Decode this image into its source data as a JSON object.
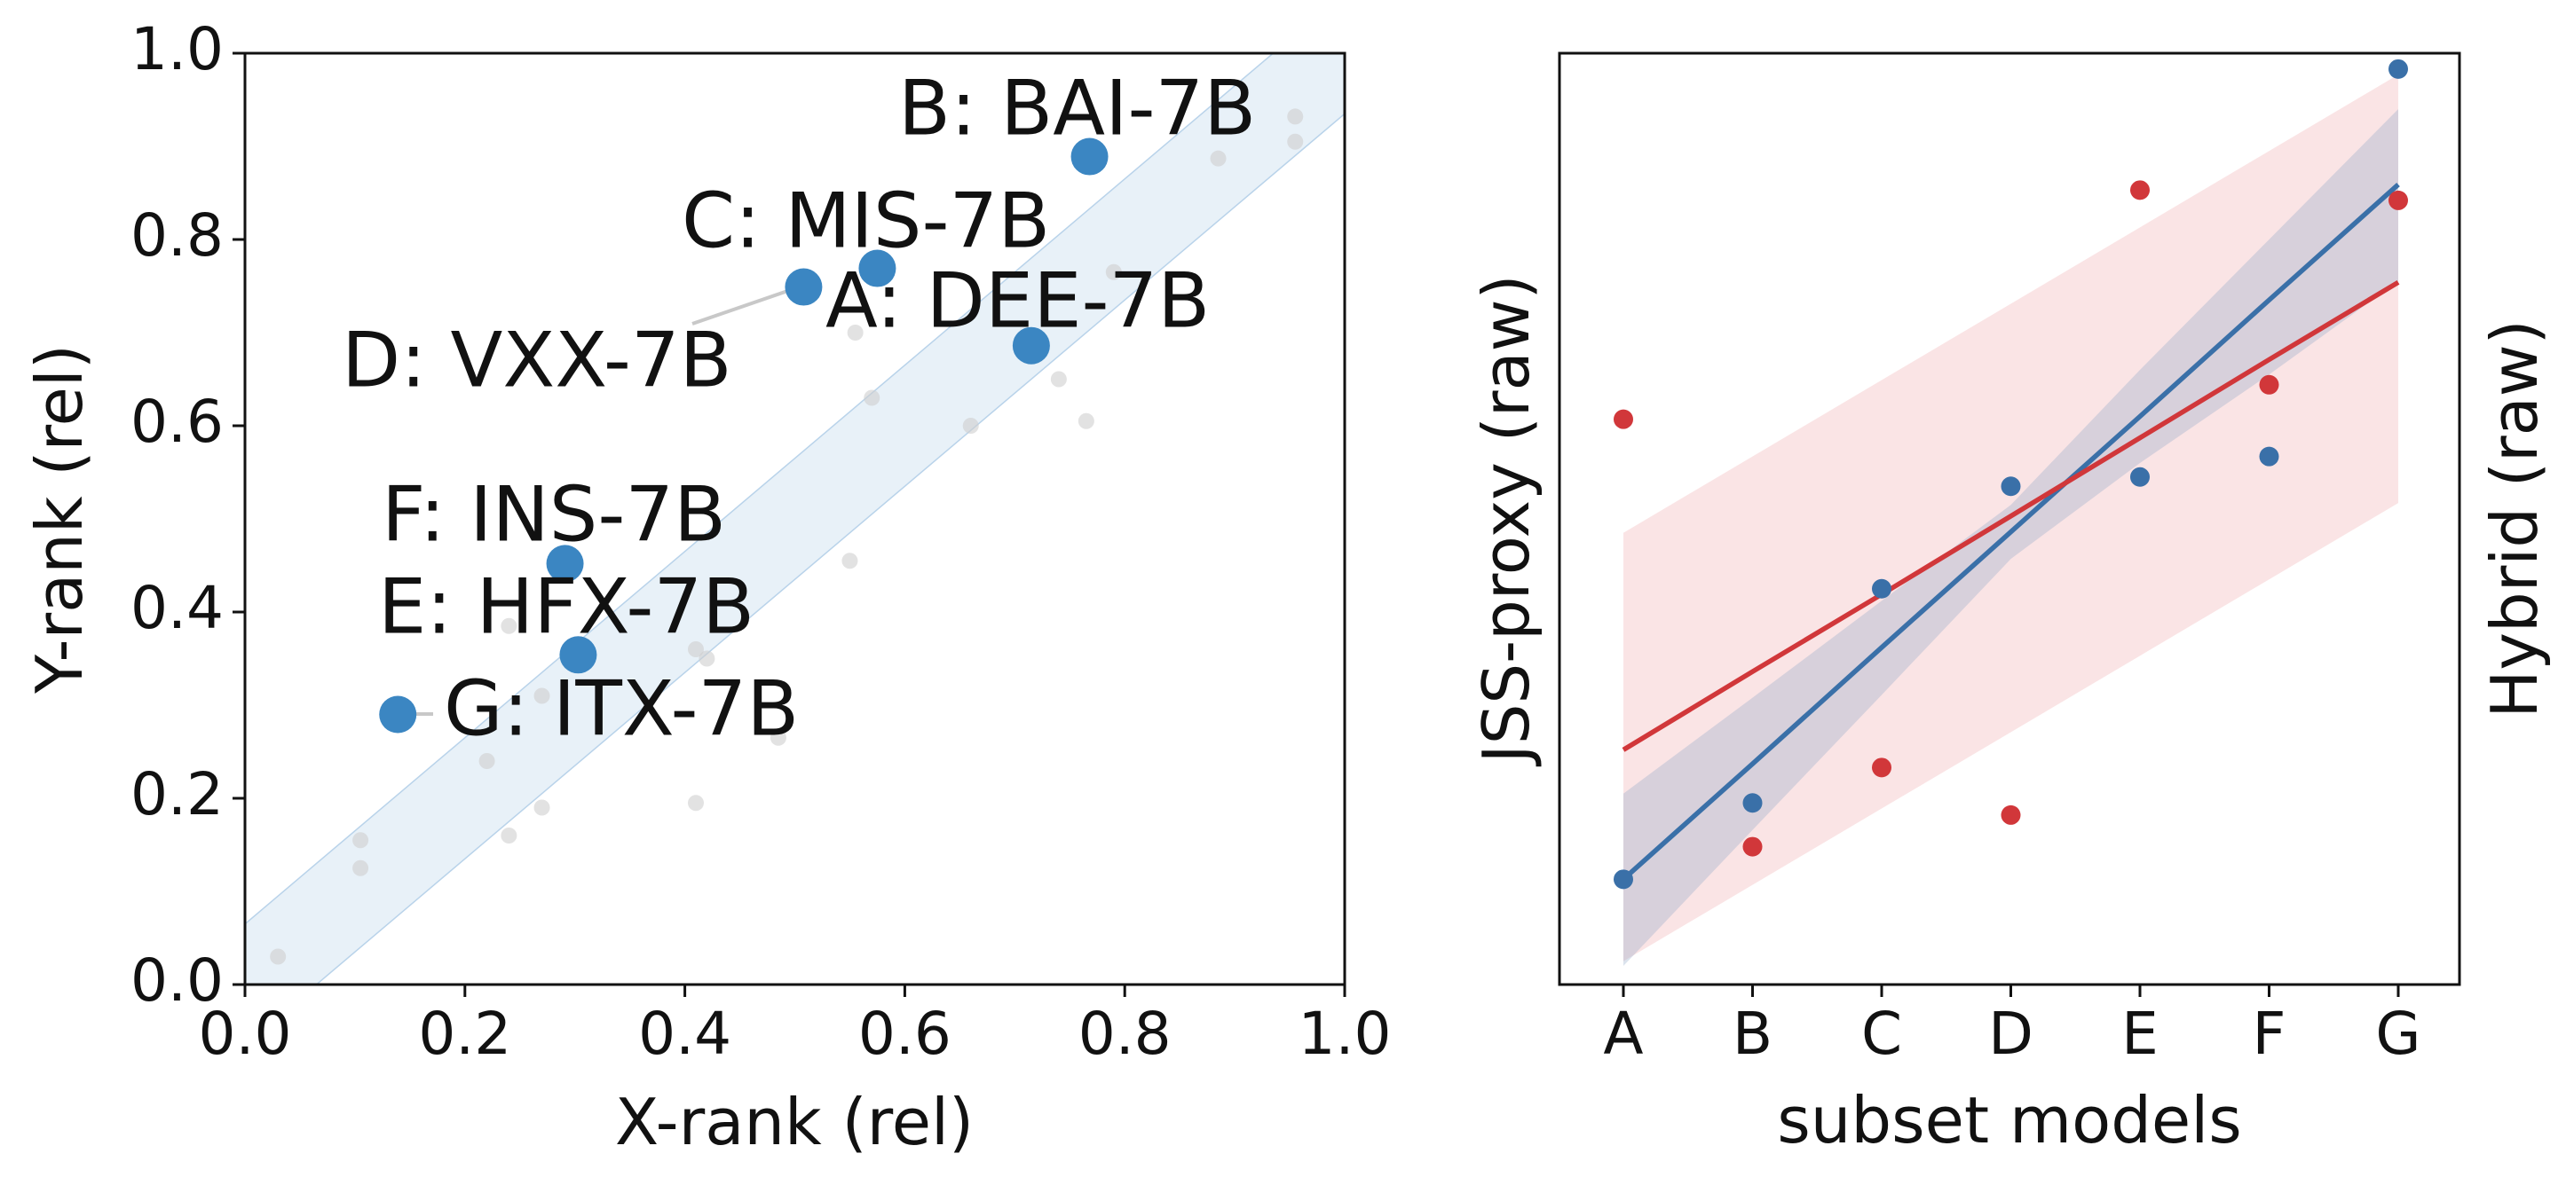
{
  "chart_data": [
    {
      "type": "scatter",
      "xlabel": "X-rank (rel)",
      "ylabel": "Y-rank (rel)",
      "xlim": [
        0.0,
        1.0
      ],
      "ylim": [
        0.0,
        1.0
      ],
      "xticks": [
        "0.0",
        "0.2",
        "0.4",
        "0.6",
        "0.8",
        "1.0"
      ],
      "yticks": [
        "0.0",
        "0.2",
        "0.4",
        "0.6",
        "0.8",
        "1.0"
      ],
      "diagonal_band_halfwidth": 0.065,
      "highlighted": [
        {
          "label": "A: DEE-7B",
          "x": 0.715,
          "y": 0.686
        },
        {
          "label": "B: BAI-7B",
          "x": 0.768,
          "y": 0.889
        },
        {
          "label": "C: MIS-7B",
          "x": 0.575,
          "y": 0.769
        },
        {
          "label": "D: VXX-7B",
          "x": 0.508,
          "y": 0.749
        },
        {
          "label": "E: HFX-7B",
          "x": 0.303,
          "y": 0.354
        },
        {
          "label": "F: INS-7B",
          "x": 0.291,
          "y": 0.452
        },
        {
          "label": "G: ITX-7B",
          "x": 0.139,
          "y": 0.29
        }
      ],
      "background_points": [
        {
          "x": 0.03,
          "y": 0.03
        },
        {
          "x": 0.105,
          "y": 0.155
        },
        {
          "x": 0.105,
          "y": 0.125
        },
        {
          "x": 0.22,
          "y": 0.24
        },
        {
          "x": 0.24,
          "y": 0.16
        },
        {
          "x": 0.27,
          "y": 0.19
        },
        {
          "x": 0.27,
          "y": 0.31
        },
        {
          "x": 0.24,
          "y": 0.385
        },
        {
          "x": 0.41,
          "y": 0.195
        },
        {
          "x": 0.41,
          "y": 0.36
        },
        {
          "x": 0.42,
          "y": 0.35
        },
        {
          "x": 0.485,
          "y": 0.265
        },
        {
          "x": 0.55,
          "y": 0.455
        },
        {
          "x": 0.555,
          "y": 0.7
        },
        {
          "x": 0.57,
          "y": 0.63
        },
        {
          "x": 0.66,
          "y": 0.6
        },
        {
          "x": 0.74,
          "y": 0.65
        },
        {
          "x": 0.765,
          "y": 0.605
        },
        {
          "x": 0.79,
          "y": 0.765
        },
        {
          "x": 0.885,
          "y": 0.887
        },
        {
          "x": 0.955,
          "y": 0.932
        },
        {
          "x": 0.955,
          "y": 0.905
        }
      ]
    },
    {
      "type": "scatter",
      "xlabel": "subset models",
      "ylabel_left": "JSS-proxy (raw)",
      "ylabel_right": "Hybrid (raw)",
      "categories": [
        "A",
        "B",
        "C",
        "D",
        "E",
        "F",
        "G"
      ],
      "y_range": [
        0.0,
        1.0
      ],
      "series": [
        {
          "name": "JSS-proxy (raw)",
          "color": "#3a70a8",
          "values": [
            0.113,
            0.195,
            0.425,
            0.535,
            0.545,
            0.567,
            0.983
          ],
          "fit": [
            0.113,
            0.237,
            0.362,
            0.486,
            0.61,
            0.735,
            0.859
          ],
          "band_lower": [
            0.02,
            0.166,
            0.311,
            0.457,
            0.56,
            0.655,
            0.755
          ],
          "band_upper": [
            0.205,
            0.308,
            0.412,
            0.515,
            0.66,
            0.8,
            0.94
          ]
        },
        {
          "name": "Hybrid (raw)",
          "color": "#d1373a",
          "values": [
            0.607,
            0.148,
            0.233,
            0.182,
            0.853,
            0.644,
            0.842
          ],
          "fit": [
            0.252,
            0.336,
            0.419,
            0.503,
            0.587,
            0.671,
            0.754
          ],
          "band_lower": [
            0.025,
            0.107,
            0.189,
            0.271,
            0.353,
            0.435,
            0.517
          ],
          "band_upper": [
            0.485,
            0.567,
            0.649,
            0.731,
            0.813,
            0.895,
            0.977
          ]
        }
      ]
    }
  ]
}
